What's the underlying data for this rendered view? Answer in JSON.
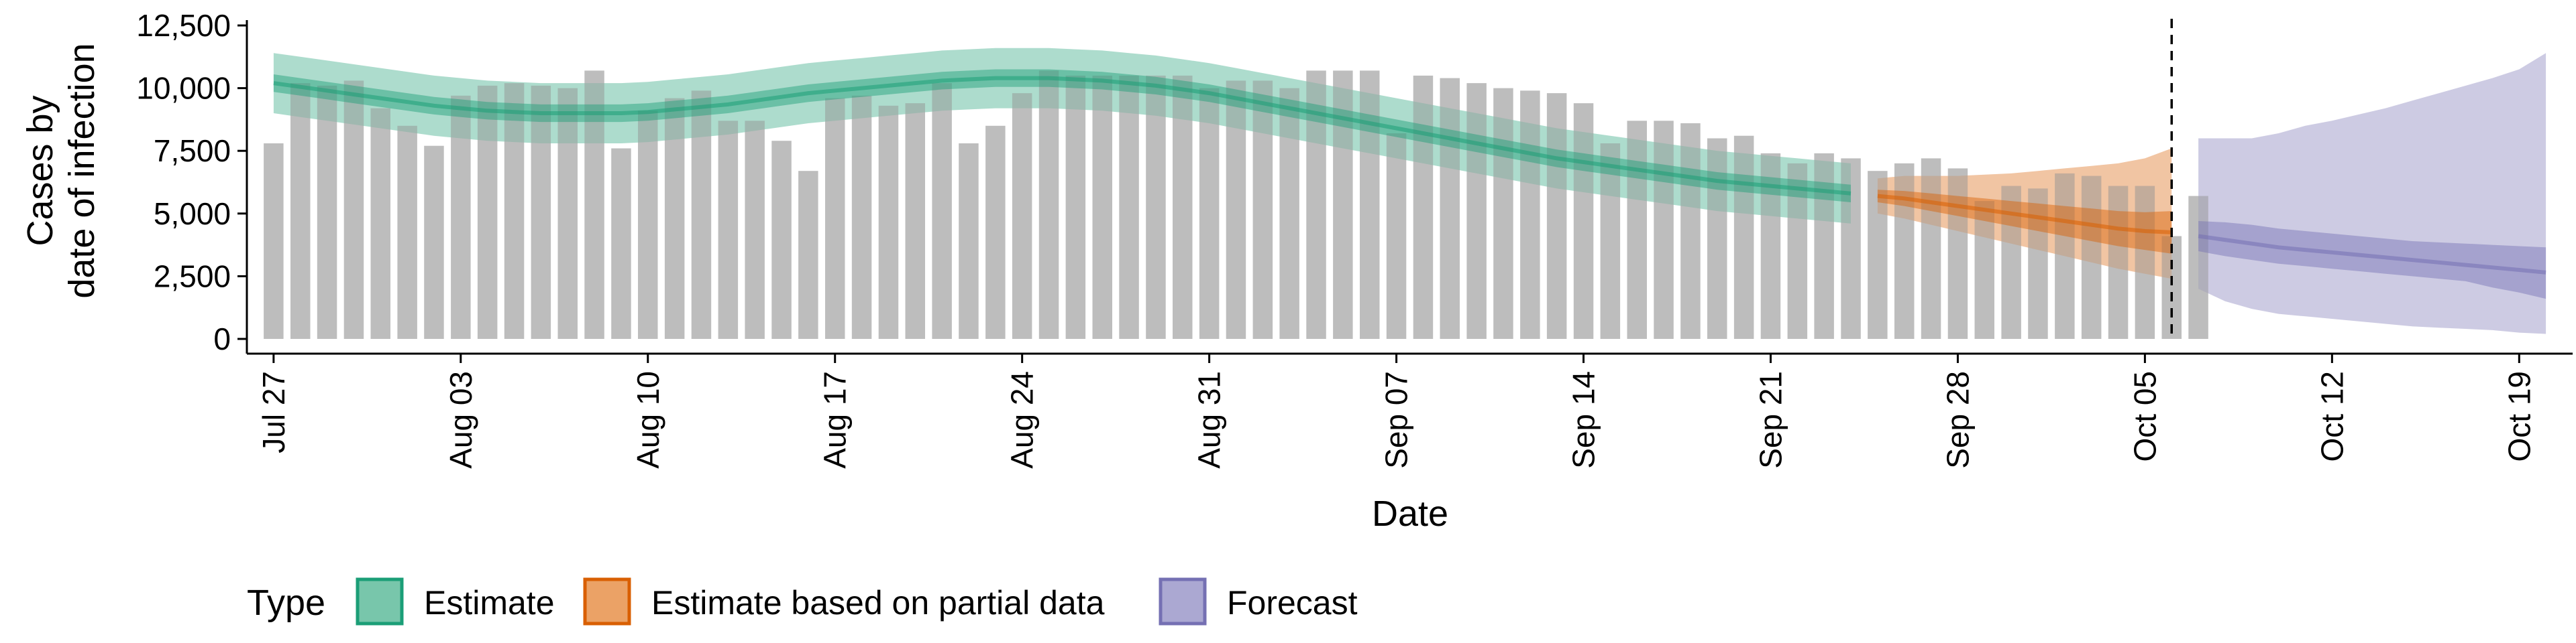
{
  "chart_data": {
    "type": "bar",
    "xlabel": "Date",
    "ylabel_lines": [
      "Cases by",
      "date of infection"
    ],
    "y_ticks": [
      0,
      2500,
      5000,
      7500,
      10000,
      12500
    ],
    "y_tick_labels": [
      "0",
      "2,500",
      "5,000",
      "7,500",
      "10,000",
      "12,500"
    ],
    "ylim": [
      0,
      12500
    ],
    "x_start": "2020-07-26",
    "x_end": "2020-10-21",
    "x_ticks": [
      "2020-07-27",
      "2020-08-03",
      "2020-08-10",
      "2020-08-17",
      "2020-08-24",
      "2020-08-31",
      "2020-09-07",
      "2020-09-14",
      "2020-09-21",
      "2020-09-28",
      "2020-10-05",
      "2020-10-12",
      "2020-10-19"
    ],
    "x_tick_labels": [
      "Jul 27",
      "Aug 03",
      "Aug 10",
      "Aug 17",
      "Aug 24",
      "Aug 31",
      "Sep 07",
      "Sep 14",
      "Sep 21",
      "Sep 28",
      "Oct 05",
      "Oct 12",
      "Oct 19"
    ],
    "vline_date": "2020-10-06",
    "bars": {
      "start_date": "2020-07-27",
      "color": "#bdbdbd",
      "values": [
        7800,
        10200,
        10100,
        10300,
        9200,
        8500,
        7700,
        9700,
        10100,
        10200,
        10100,
        10000,
        10700,
        7600,
        9100,
        9600,
        9900,
        8700,
        8700,
        7900,
        6700,
        9600,
        9700,
        9300,
        9400,
        10200,
        7800,
        8500,
        9800,
        10700,
        10500,
        10500,
        10500,
        10500,
        10500,
        10000,
        10300,
        10300,
        10000,
        10700,
        10700,
        10700,
        8200,
        10500,
        10400,
        10200,
        10000,
        9900,
        9800,
        9400,
        7800,
        8700,
        8700,
        8600,
        8000,
        8100,
        7400,
        7000,
        7400,
        7200,
        6700,
        7000,
        7200,
        6800,
        5500,
        6100,
        6000,
        6600,
        6500,
        6100,
        6100,
        4100,
        5700
      ]
    },
    "series": [
      {
        "name": "Estimate",
        "color": "#1b9e77",
        "start_date": "2020-07-27",
        "median": [
          10200,
          10050,
          9900,
          9750,
          9600,
          9450,
          9300,
          9200,
          9100,
          9050,
          9000,
          9000,
          9000,
          9000,
          9050,
          9150,
          9250,
          9350,
          9500,
          9650,
          9800,
          9900,
          10000,
          10100,
          10200,
          10300,
          10350,
          10400,
          10400,
          10400,
          10350,
          10300,
          10200,
          10100,
          9950,
          9800,
          9600,
          9400,
          9200,
          9000,
          8800,
          8600,
          8400,
          8200,
          8000,
          7800,
          7600,
          7400,
          7200,
          7050,
          6900,
          6750,
          6600,
          6450,
          6300,
          6200,
          6100,
          6000,
          5900,
          5800
        ],
        "inner_lo": [
          9850,
          9700,
          9550,
          9400,
          9250,
          9100,
          8950,
          8850,
          8750,
          8700,
          8650,
          8650,
          8650,
          8650,
          8700,
          8800,
          8900,
          9000,
          9150,
          9300,
          9450,
          9550,
          9650,
          9750,
          9850,
          9950,
          10000,
          10050,
          10050,
          10050,
          10000,
          9950,
          9850,
          9750,
          9600,
          9450,
          9250,
          9050,
          8850,
          8650,
          8450,
          8250,
          8050,
          7850,
          7650,
          7450,
          7250,
          7050,
          6850,
          6700,
          6550,
          6400,
          6250,
          6100,
          5950,
          5850,
          5750,
          5650,
          5550,
          5450
        ],
        "inner_hi": [
          10550,
          10400,
          10250,
          10100,
          9950,
          9800,
          9650,
          9550,
          9450,
          9400,
          9350,
          9350,
          9350,
          9350,
          9400,
          9500,
          9600,
          9700,
          9850,
          10000,
          10150,
          10250,
          10350,
          10450,
          10550,
          10650,
          10700,
          10750,
          10750,
          10750,
          10700,
          10650,
          10550,
          10450,
          10300,
          10150,
          9950,
          9750,
          9550,
          9350,
          9150,
          8950,
          8750,
          8550,
          8350,
          8150,
          7950,
          7750,
          7550,
          7400,
          7250,
          7100,
          6950,
          6800,
          6650,
          6550,
          6450,
          6350,
          6250,
          6150
        ],
        "outer_lo": [
          9000,
          8850,
          8700,
          8550,
          8400,
          8250,
          8100,
          8000,
          7900,
          7850,
          7800,
          7800,
          7800,
          7800,
          7850,
          7950,
          8050,
          8150,
          8300,
          8450,
          8600,
          8700,
          8800,
          8900,
          9000,
          9100,
          9150,
          9200,
          9200,
          9200,
          9150,
          9100,
          9000,
          8900,
          8750,
          8600,
          8400,
          8200,
          8000,
          7800,
          7600,
          7400,
          7200,
          7000,
          6800,
          6600,
          6400,
          6200,
          6000,
          5850,
          5700,
          5550,
          5400,
          5250,
          5100,
          5000,
          4900,
          4800,
          4700,
          4600
        ],
        "outer_hi": [
          11400,
          11250,
          11100,
          10950,
          10800,
          10650,
          10500,
          10400,
          10300,
          10250,
          10200,
          10200,
          10200,
          10200,
          10250,
          10350,
          10450,
          10550,
          10700,
          10850,
          11000,
          11100,
          11200,
          11300,
          11400,
          11500,
          11550,
          11600,
          11600,
          11600,
          11550,
          11500,
          11400,
          11300,
          11150,
          11000,
          10800,
          10600,
          10400,
          10200,
          10000,
          9800,
          9600,
          9400,
          9200,
          9000,
          8800,
          8600,
          8400,
          8250,
          8100,
          7950,
          7800,
          7650,
          7500,
          7400,
          7300,
          7200,
          7100,
          7000
        ]
      },
      {
        "name": "Estimate based on partial data",
        "color": "#d95f02",
        "start_date": "2020-09-25",
        "median": [
          5700,
          5600,
          5450,
          5300,
          5150,
          5000,
          4850,
          4700,
          4550,
          4400,
          4300,
          4250
        ],
        "inner_lo": [
          5450,
          5300,
          5100,
          4900,
          4700,
          4500,
          4300,
          4100,
          3900,
          3700,
          3550,
          3400
        ],
        "inner_hi": [
          5950,
          5900,
          5800,
          5700,
          5600,
          5500,
          5400,
          5300,
          5200,
          5100,
          5050,
          5100
        ],
        "outer_lo": [
          5000,
          4800,
          4550,
          4300,
          4050,
          3800,
          3550,
          3300,
          3050,
          2800,
          2600,
          2400
        ],
        "outer_hi": [
          6400,
          6500,
          6500,
          6500,
          6550,
          6600,
          6700,
          6800,
          6900,
          7000,
          7200,
          7600
        ]
      },
      {
        "name": "Forecast",
        "color": "#7570b3",
        "start_date": "2020-10-07",
        "median": [
          4100,
          3950,
          3800,
          3650,
          3550,
          3450,
          3350,
          3250,
          3150,
          3050,
          2950,
          2850,
          2750,
          2650
        ],
        "inner_lo": [
          3500,
          3300,
          3150,
          3000,
          2900,
          2800,
          2700,
          2600,
          2500,
          2400,
          2300,
          2050,
          1850,
          1600
        ],
        "inner_hi": [
          4700,
          4650,
          4550,
          4400,
          4300,
          4200,
          4100,
          4000,
          3900,
          3850,
          3800,
          3750,
          3700,
          3650
        ],
        "outer_lo": [
          2000,
          1500,
          1200,
          1000,
          900,
          800,
          700,
          600,
          500,
          450,
          400,
          350,
          250,
          200
        ],
        "outer_hi": [
          8000,
          8000,
          8000,
          8200,
          8500,
          8700,
          8950,
          9200,
          9500,
          9800,
          10100,
          10400,
          10750,
          11400
        ]
      }
    ],
    "legend": {
      "title": "Type",
      "placement": "bottom",
      "items": [
        "Estimate",
        "Estimate based on partial data",
        "Forecast"
      ]
    },
    "grid": false
  }
}
